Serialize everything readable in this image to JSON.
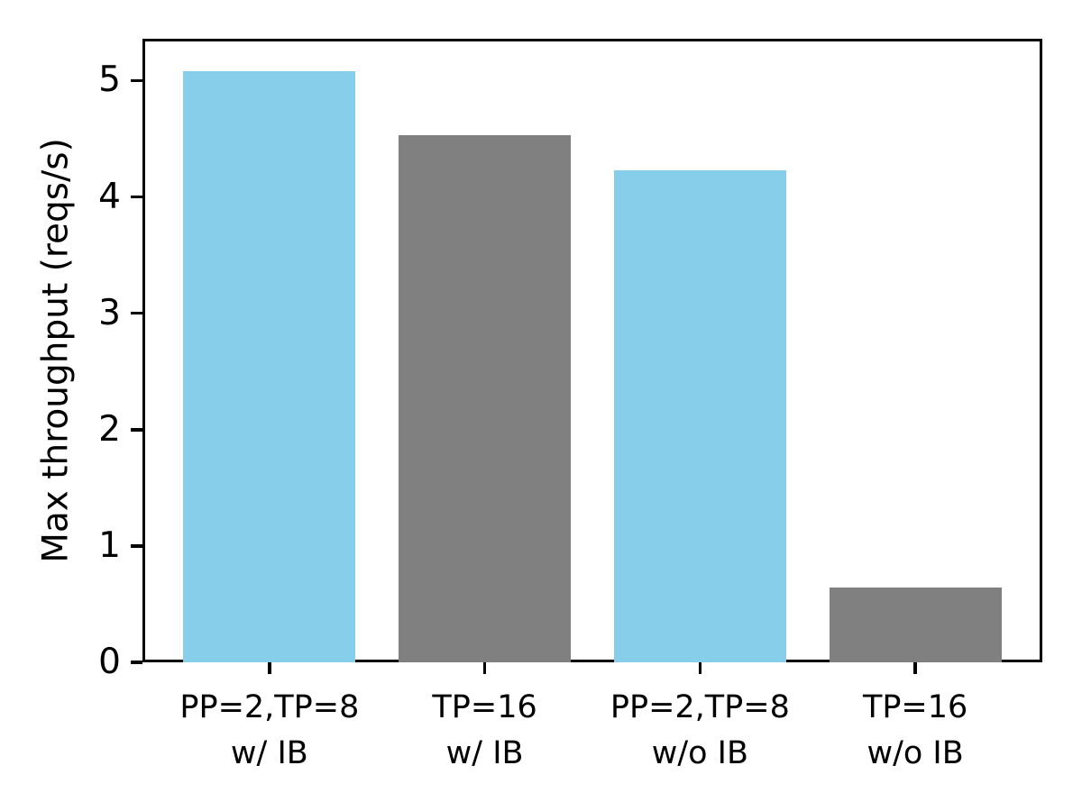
{
  "chart_data": {
    "type": "bar",
    "title": "",
    "categories": [
      "PP=2,TP=8\nw/ IB",
      "TP=16\nw/ IB",
      "PP=2,TP=8\nw/o IB",
      "TP=16\nw/o IB"
    ],
    "values": [
      5.08,
      4.53,
      4.23,
      0.64
    ],
    "bar_colors": [
      "#87CEEB",
      "#808080",
      "#87CEEB",
      "#808080"
    ],
    "xlabel": "",
    "ylabel": "Max throughput (reqs/s)",
    "ylim": [
      0,
      5.36
    ],
    "yticks": [
      0,
      1,
      2,
      3,
      4,
      5
    ],
    "bar_width_fraction": 0.8,
    "grid": false,
    "legend": "none",
    "axis_color": "#000000",
    "text_color": "#000000",
    "background_color": "#ffffff"
  }
}
